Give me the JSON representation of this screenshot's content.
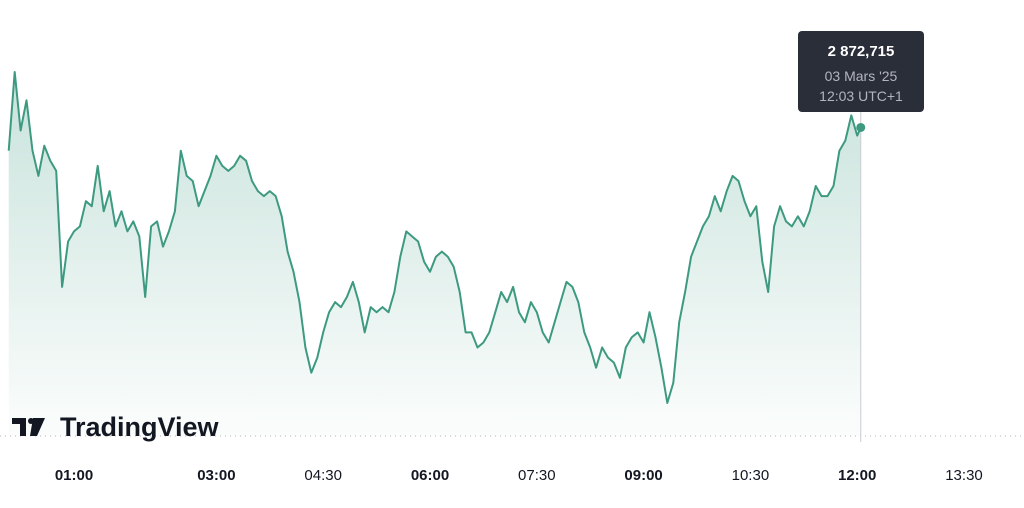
{
  "chart_data": {
    "type": "line",
    "logo": "TradingView",
    "color": "#3d9a80",
    "x": [
      "00:05",
      "00:10",
      "00:15",
      "00:20",
      "00:25",
      "00:30",
      "00:35",
      "00:40",
      "00:45",
      "00:50",
      "00:55",
      "01:00",
      "01:05",
      "01:10",
      "01:15",
      "01:20",
      "01:25",
      "01:30",
      "01:35",
      "01:40",
      "01:45",
      "01:50",
      "01:55",
      "02:00",
      "02:05",
      "02:10",
      "02:15",
      "02:20",
      "02:25",
      "02:30",
      "02:35",
      "02:40",
      "02:45",
      "02:50",
      "02:55",
      "03:00",
      "03:05",
      "03:10",
      "03:15",
      "03:20",
      "03:25",
      "03:30",
      "03:35",
      "03:40",
      "03:45",
      "03:50",
      "03:55",
      "04:00",
      "04:05",
      "04:10",
      "04:15",
      "04:20",
      "04:25",
      "04:30",
      "04:35",
      "04:40",
      "04:45",
      "04:50",
      "04:55",
      "05:00",
      "05:05",
      "05:10",
      "05:15",
      "05:20",
      "05:25",
      "05:30",
      "05:35",
      "05:40",
      "05:45",
      "05:50",
      "05:55",
      "06:00",
      "06:05",
      "06:10",
      "06:15",
      "06:20",
      "06:25",
      "06:30",
      "06:35",
      "06:40",
      "06:45",
      "06:50",
      "06:55",
      "07:00",
      "07:05",
      "07:10",
      "07:15",
      "07:20",
      "07:25",
      "07:30",
      "07:35",
      "07:40",
      "07:45",
      "07:50",
      "07:55",
      "08:00",
      "08:05",
      "08:10",
      "08:15",
      "08:20",
      "08:25",
      "08:30",
      "08:35",
      "08:40",
      "08:45",
      "08:50",
      "08:55",
      "09:00",
      "09:05",
      "09:10",
      "09:15",
      "09:20",
      "09:25",
      "09:30",
      "09:35",
      "09:40",
      "09:45",
      "09:50",
      "09:55",
      "10:00",
      "10:05",
      "10:10",
      "10:15",
      "10:20",
      "10:25",
      "10:30",
      "10:35",
      "10:40",
      "10:45",
      "10:50",
      "10:55",
      "11:00",
      "11:05",
      "11:10",
      "11:15",
      "11:20",
      "11:25",
      "11:30",
      "11:35",
      "11:40",
      "11:45",
      "11:50",
      "11:55",
      "12:00",
      "12:03"
    ],
    "values": [
      2861.2,
      2900.2,
      2871.2,
      2886.2,
      2861.2,
      2848.7,
      2863.7,
      2856.2,
      2851.2,
      2793.7,
      2816.2,
      2821.2,
      2823.7,
      2836.2,
      2833.7,
      2853.7,
      2831.2,
      2841.2,
      2823.7,
      2831.2,
      2821.2,
      2826.2,
      2818.7,
      2788.7,
      2823.7,
      2826.2,
      2813.7,
      2821.2,
      2831.2,
      2861.2,
      2848.7,
      2846.2,
      2833.7,
      2841.2,
      2848.7,
      2858.7,
      2853.7,
      2851.2,
      2853.7,
      2858.7,
      2856.2,
      2846.2,
      2841.2,
      2838.7,
      2841.2,
      2838.7,
      2828.7,
      2811.2,
      2801.2,
      2786.2,
      2763.7,
      2751.2,
      2758.7,
      2771.2,
      2781.2,
      2786.2,
      2783.7,
      2788.7,
      2796.2,
      2786.2,
      2771.2,
      2783.7,
      2781.2,
      2783.7,
      2781.2,
      2791.2,
      2808.7,
      2821.2,
      2818.7,
      2816.2,
      2806.2,
      2801.2,
      2808.7,
      2811.2,
      2808.7,
      2803.7,
      2791.2,
      2771.2,
      2771.2,
      2763.7,
      2766.2,
      2771.2,
      2781.2,
      2791.2,
      2786.2,
      2793.7,
      2781.2,
      2776.2,
      2786.2,
      2781.2,
      2771.2,
      2766.2,
      2776.2,
      2786.2,
      2796.2,
      2793.7,
      2786.2,
      2771.2,
      2763.7,
      2753.7,
      2763.7,
      2758.7,
      2756.2,
      2748.7,
      2763.7,
      2768.7,
      2771.2,
      2766.2,
      2781.2,
      2768.7,
      2753.7,
      2736.2,
      2746.2,
      2776.2,
      2791.2,
      2808.7,
      2816.2,
      2823.7,
      2828.7,
      2838.7,
      2831.2,
      2841.2,
      2848.7,
      2846.2,
      2836.2,
      2828.7,
      2833.7,
      2806.2,
      2791.2,
      2823.7,
      2833.7,
      2826.2,
      2823.7,
      2828.7,
      2823.7,
      2831.2,
      2843.7,
      2838.7,
      2838.7,
      2843.7,
      2861.2,
      2866.2,
      2878.7,
      2868.7,
      2872.715
    ],
    "xticks": [
      "01:00",
      "03:00",
      "04:30",
      "06:00",
      "07:30",
      "09:00",
      "10:30",
      "12:00",
      "13:30"
    ],
    "xticks_bold": [
      true,
      true,
      false,
      true,
      false,
      true,
      false,
      true,
      false
    ],
    "tooltip": {
      "value_label": "2 872,715",
      "date": "03 Mars '25",
      "time": "12:03 UTC+1"
    }
  }
}
